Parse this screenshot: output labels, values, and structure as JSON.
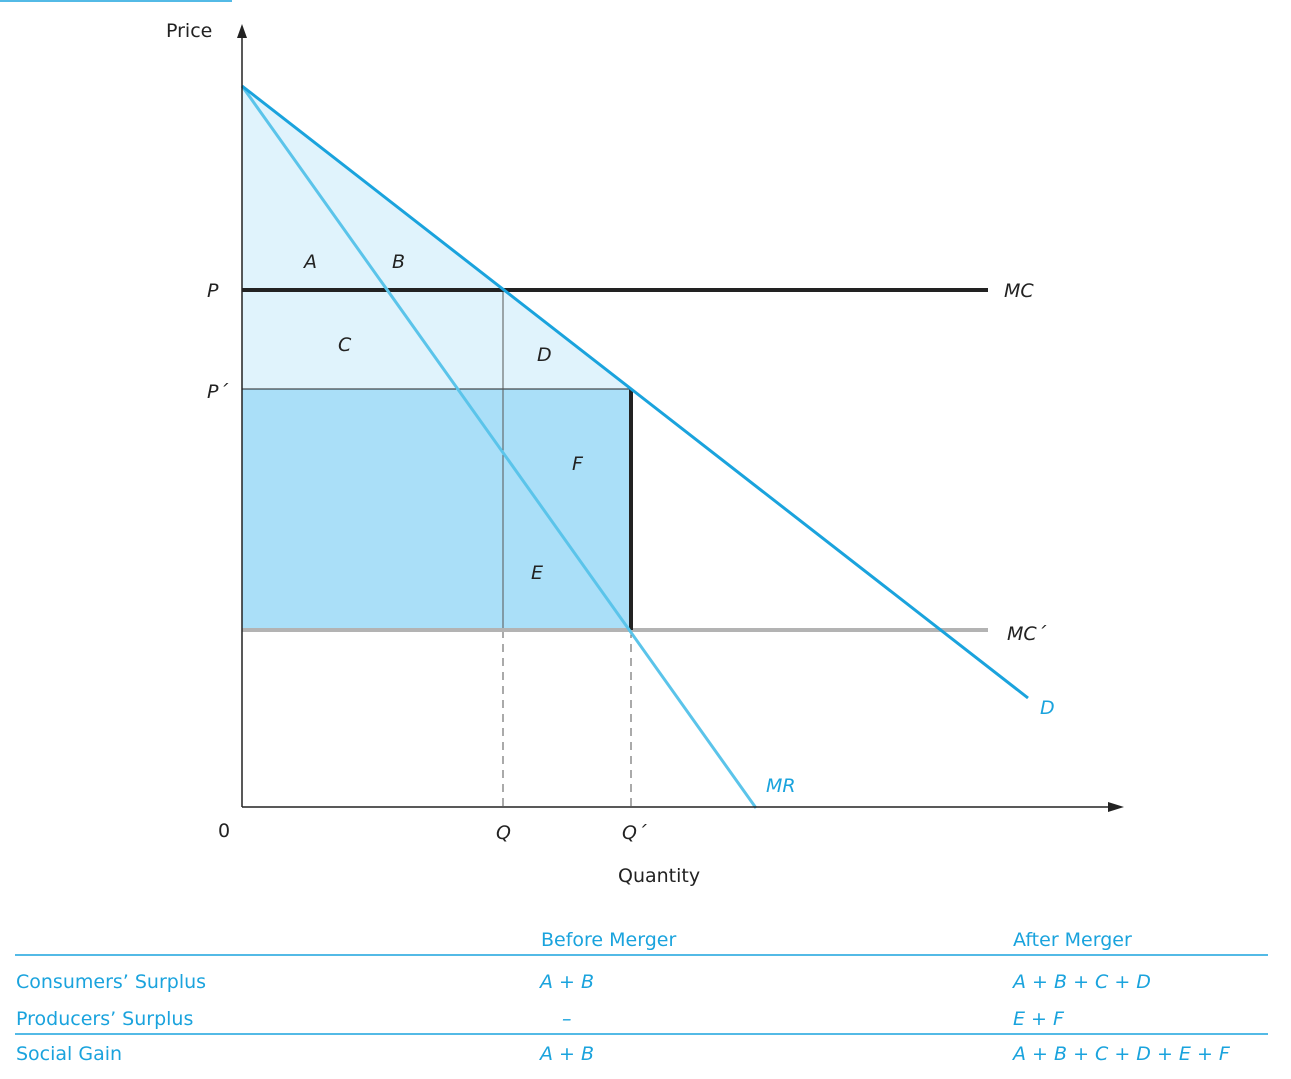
{
  "axes": {
    "y_label": "Price",
    "x_label": "Quantity",
    "origin": "0",
    "price_ticks": [
      "P",
      "P´"
    ],
    "quantity_ticks": [
      "Q",
      "Q´"
    ]
  },
  "curves": {
    "mc": "MC",
    "mc_prime": "MC´",
    "demand": "D",
    "mr": "MR"
  },
  "regions": {
    "a": "A",
    "b": "B",
    "c": "C",
    "d": "D",
    "e": "E",
    "f": "F"
  },
  "table": {
    "headers": [
      "",
      "Before Merger",
      "After Merger"
    ],
    "rows": [
      {
        "label": "Consumers’ Surplus",
        "before": "A + B",
        "after": "A + B + C + D"
      },
      {
        "label": "Producers’ Surplus",
        "before": "–",
        "after": "E + F"
      },
      {
        "label": "Social Gain",
        "before": "A + B",
        "after": "A + B + C + D + E + F"
      }
    ]
  },
  "colors": {
    "demand": "#1aa3dd",
    "mr": "#5bc4ea",
    "light_fill": "#e0f3fc",
    "dark_fill": "#aadff8",
    "mc": "#222222",
    "mc_prime": "#b3b3b3"
  }
}
